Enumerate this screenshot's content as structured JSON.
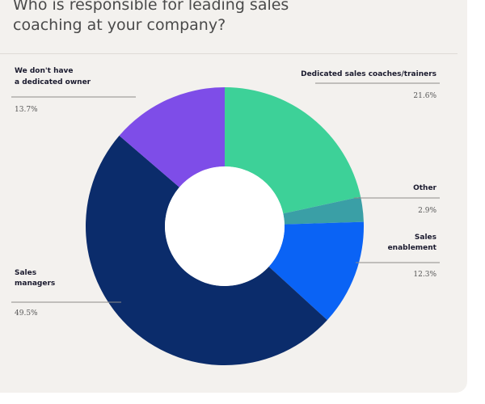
{
  "title": "Who is responsible for leading sales coaching at your company?",
  "chart_data": {
    "type": "donut",
    "slices": [
      {
        "label_lines": [
          "Dedicated sales coaches/trainers"
        ],
        "value_text": "21.6%",
        "value": 21.6,
        "color": "#3dd198"
      },
      {
        "label_lines": [
          "Other"
        ],
        "value_text": "2.9%",
        "value": 2.9,
        "color": "#3a9fa6"
      },
      {
        "label_lines": [
          "Sales",
          "enablement"
        ],
        "value_text": "12.3%",
        "value": 12.3,
        "color": "#0a63f5"
      },
      {
        "label_lines": [
          "Sales",
          "managers"
        ],
        "value_text": "49.5%",
        "value": 49.5,
        "color": "#0b2c6b"
      },
      {
        "label_lines": [
          "We don't have",
          "a dedicated owner"
        ],
        "value_text": "13.7%",
        "value": 13.7,
        "color": "#7e4de8"
      }
    ]
  }
}
